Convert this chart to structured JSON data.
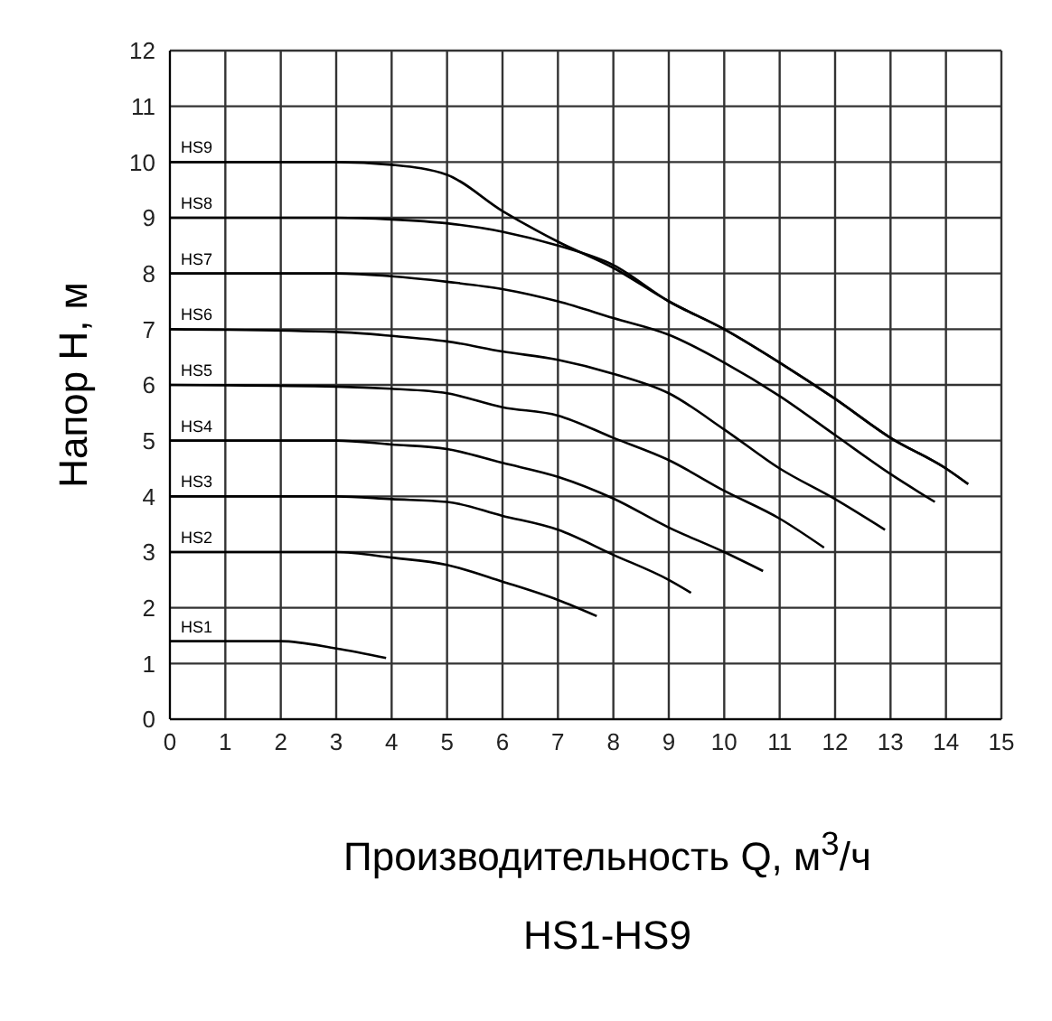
{
  "chart_data": {
    "type": "line",
    "title": "HS1-HS9",
    "xlabel": "Производительность Q, м$^{3}$/ч",
    "ylabel": "Напор H, м",
    "xlim": [
      0,
      15
    ],
    "xticks": [
      0,
      1,
      2,
      3,
      4,
      5,
      6,
      7,
      8,
      9,
      10,
      11,
      12,
      13,
      14,
      15
    ],
    "ylim": [
      0,
      12
    ],
    "yticks": [
      0,
      1,
      2,
      3,
      4,
      5,
      6,
      7,
      8,
      9,
      10,
      11,
      12
    ],
    "grid": true,
    "marker": "none",
    "line_style": "solid",
    "series": [
      {
        "name": "HS9",
        "color": "#000000",
        "x": [
          0,
          3,
          4,
          5,
          6,
          7,
          8,
          9,
          10,
          11,
          12,
          13,
          14,
          14.4
        ],
        "values": [
          10,
          10,
          9.95,
          9.77,
          9.12,
          8.57,
          8.1,
          7.5,
          7,
          6.4,
          5.75,
          5.05,
          4.5,
          4.22
        ]
      },
      {
        "name": "HS8",
        "color": "#000000",
        "x": [
          0,
          3,
          4,
          5,
          6,
          7,
          8,
          9,
          10,
          11,
          12,
          13,
          14,
          14.4
        ],
        "values": [
          9,
          9,
          8.97,
          8.9,
          8.75,
          8.5,
          8.15,
          7.5,
          7,
          6.4,
          5.75,
          5.05,
          4.5,
          4.22
        ]
      },
      {
        "name": "HS7",
        "color": "#000000",
        "x": [
          0,
          3,
          4,
          5,
          6,
          7,
          8,
          9,
          10,
          11,
          12,
          13,
          13.8
        ],
        "values": [
          8,
          8,
          7.95,
          7.85,
          7.72,
          7.5,
          7.2,
          6.9,
          6.4,
          5.8,
          5.1,
          4.4,
          3.9
        ]
      },
      {
        "name": "HS6",
        "color": "#000000",
        "x": [
          0,
          3,
          4,
          5,
          6,
          7,
          8,
          9,
          10,
          11,
          12,
          12.9
        ],
        "values": [
          7,
          6.95,
          6.88,
          6.78,
          6.6,
          6.45,
          6.2,
          5.85,
          5.2,
          4.5,
          3.95,
          3.4
        ]
      },
      {
        "name": "HS5",
        "color": "#000000",
        "x": [
          0,
          3,
          4,
          5,
          6,
          7,
          8,
          9,
          10,
          11,
          11.8
        ],
        "values": [
          6,
          5.97,
          5.93,
          5.85,
          5.6,
          5.45,
          5.05,
          4.65,
          4.1,
          3.6,
          3.08
        ]
      },
      {
        "name": "HS4",
        "color": "#000000",
        "x": [
          0,
          3,
          4,
          5,
          6,
          7,
          8,
          9,
          10,
          10.7
        ],
        "values": [
          5,
          5,
          4.93,
          4.85,
          4.6,
          4.35,
          3.96,
          3.44,
          3,
          2.66
        ]
      },
      {
        "name": "HS3",
        "color": "#000000",
        "x": [
          0,
          3,
          4,
          5,
          6,
          7,
          8,
          9,
          9.4
        ],
        "values": [
          4,
          4,
          3.95,
          3.9,
          3.65,
          3.4,
          2.95,
          2.5,
          2.27
        ]
      },
      {
        "name": "HS2",
        "color": "#000000",
        "x": [
          0,
          3,
          4,
          5,
          6,
          7,
          7.7
        ],
        "values": [
          3,
          3,
          2.9,
          2.77,
          2.47,
          2.14,
          1.85
        ]
      },
      {
        "name": "HS1",
        "color": "#000000",
        "x": [
          0,
          2,
          3,
          3.9
        ],
        "values": [
          1.4,
          1.4,
          1.27,
          1.1
        ]
      }
    ]
  }
}
